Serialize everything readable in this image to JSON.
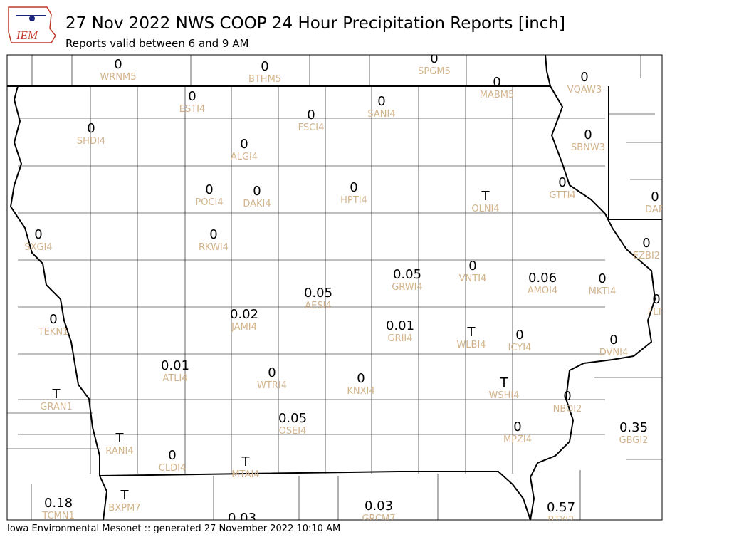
{
  "header": {
    "logo": "IEM",
    "title": "27 Nov 2022 NWS COOP 24 Hour Precipitation Reports [inch]",
    "subtitle": "Reports valid between 6 and 9 AM"
  },
  "stations": [
    {
      "value": "0",
      "id": "WRNM5"
    },
    {
      "value": "0",
      "id": "BTHM5"
    },
    {
      "value": "0",
      "id": "SPGM5"
    },
    {
      "value": "0",
      "id": "MABM5"
    },
    {
      "value": "0",
      "id": "VQAW3"
    },
    {
      "value": "0",
      "id": "ESTI4"
    },
    {
      "value": "0",
      "id": "SANI4"
    },
    {
      "value": "0",
      "id": "FSCI4"
    },
    {
      "value": "0",
      "id": "SHDI4"
    },
    {
      "value": "0",
      "id": "SBNW3"
    },
    {
      "value": "0",
      "id": "ALGI4"
    },
    {
      "value": "0",
      "id": "GTTI4"
    },
    {
      "value": "0",
      "id": "POCI4"
    },
    {
      "value": "0",
      "id": "DAKI4"
    },
    {
      "value": "0",
      "id": "HPTI4"
    },
    {
      "value": "T",
      "id": "OLNI4"
    },
    {
      "value": "0",
      "id": "DAR"
    },
    {
      "value": "0",
      "id": "SXGI4"
    },
    {
      "value": "0",
      "id": "RKWI4"
    },
    {
      "value": "0",
      "id": "EZBI2"
    },
    {
      "value": "0.05",
      "id": "GRWI4"
    },
    {
      "value": "0",
      "id": "VNTI4"
    },
    {
      "value": "0.06",
      "id": "AMOI4"
    },
    {
      "value": "0",
      "id": "MKTI4"
    },
    {
      "value": "0.05",
      "id": "AESI4"
    },
    {
      "value": "0",
      "id": "FLTI"
    },
    {
      "value": "0",
      "id": "TEKN1"
    },
    {
      "value": "0.02",
      "id": "JAMI4"
    },
    {
      "value": "0.01",
      "id": "GRII4"
    },
    {
      "value": "T",
      "id": "WLBI4"
    },
    {
      "value": "0",
      "id": "ICYI4"
    },
    {
      "value": "0",
      "id": "DVNI4"
    },
    {
      "value": "0.01",
      "id": "ATLI4"
    },
    {
      "value": "0",
      "id": "WTRI4"
    },
    {
      "value": "0",
      "id": "KNXI4"
    },
    {
      "value": "T",
      "id": "WSHI4"
    },
    {
      "value": "T",
      "id": "GRAN1"
    },
    {
      "value": "0",
      "id": "NBOI2"
    },
    {
      "value": "0.05",
      "id": "OSEI4"
    },
    {
      "value": "0",
      "id": "MPZI4"
    },
    {
      "value": "0.35",
      "id": "GBGI2"
    },
    {
      "value": "T",
      "id": "RANI4"
    },
    {
      "value": "0",
      "id": "CLDI4"
    },
    {
      "value": "T",
      "id": "MTAI4"
    },
    {
      "value": "T",
      "id": "BXPM7"
    },
    {
      "value": "0.18",
      "id": "TCMN1"
    },
    {
      "value": "0.03",
      "id": "GRCM7"
    },
    {
      "value": "0.57",
      "id": "BTYI2"
    },
    {
      "value": "0.03"
    }
  ],
  "footer": "Iowa Environmental Mesonet :: generated 27 November 2022 10:10 AM"
}
